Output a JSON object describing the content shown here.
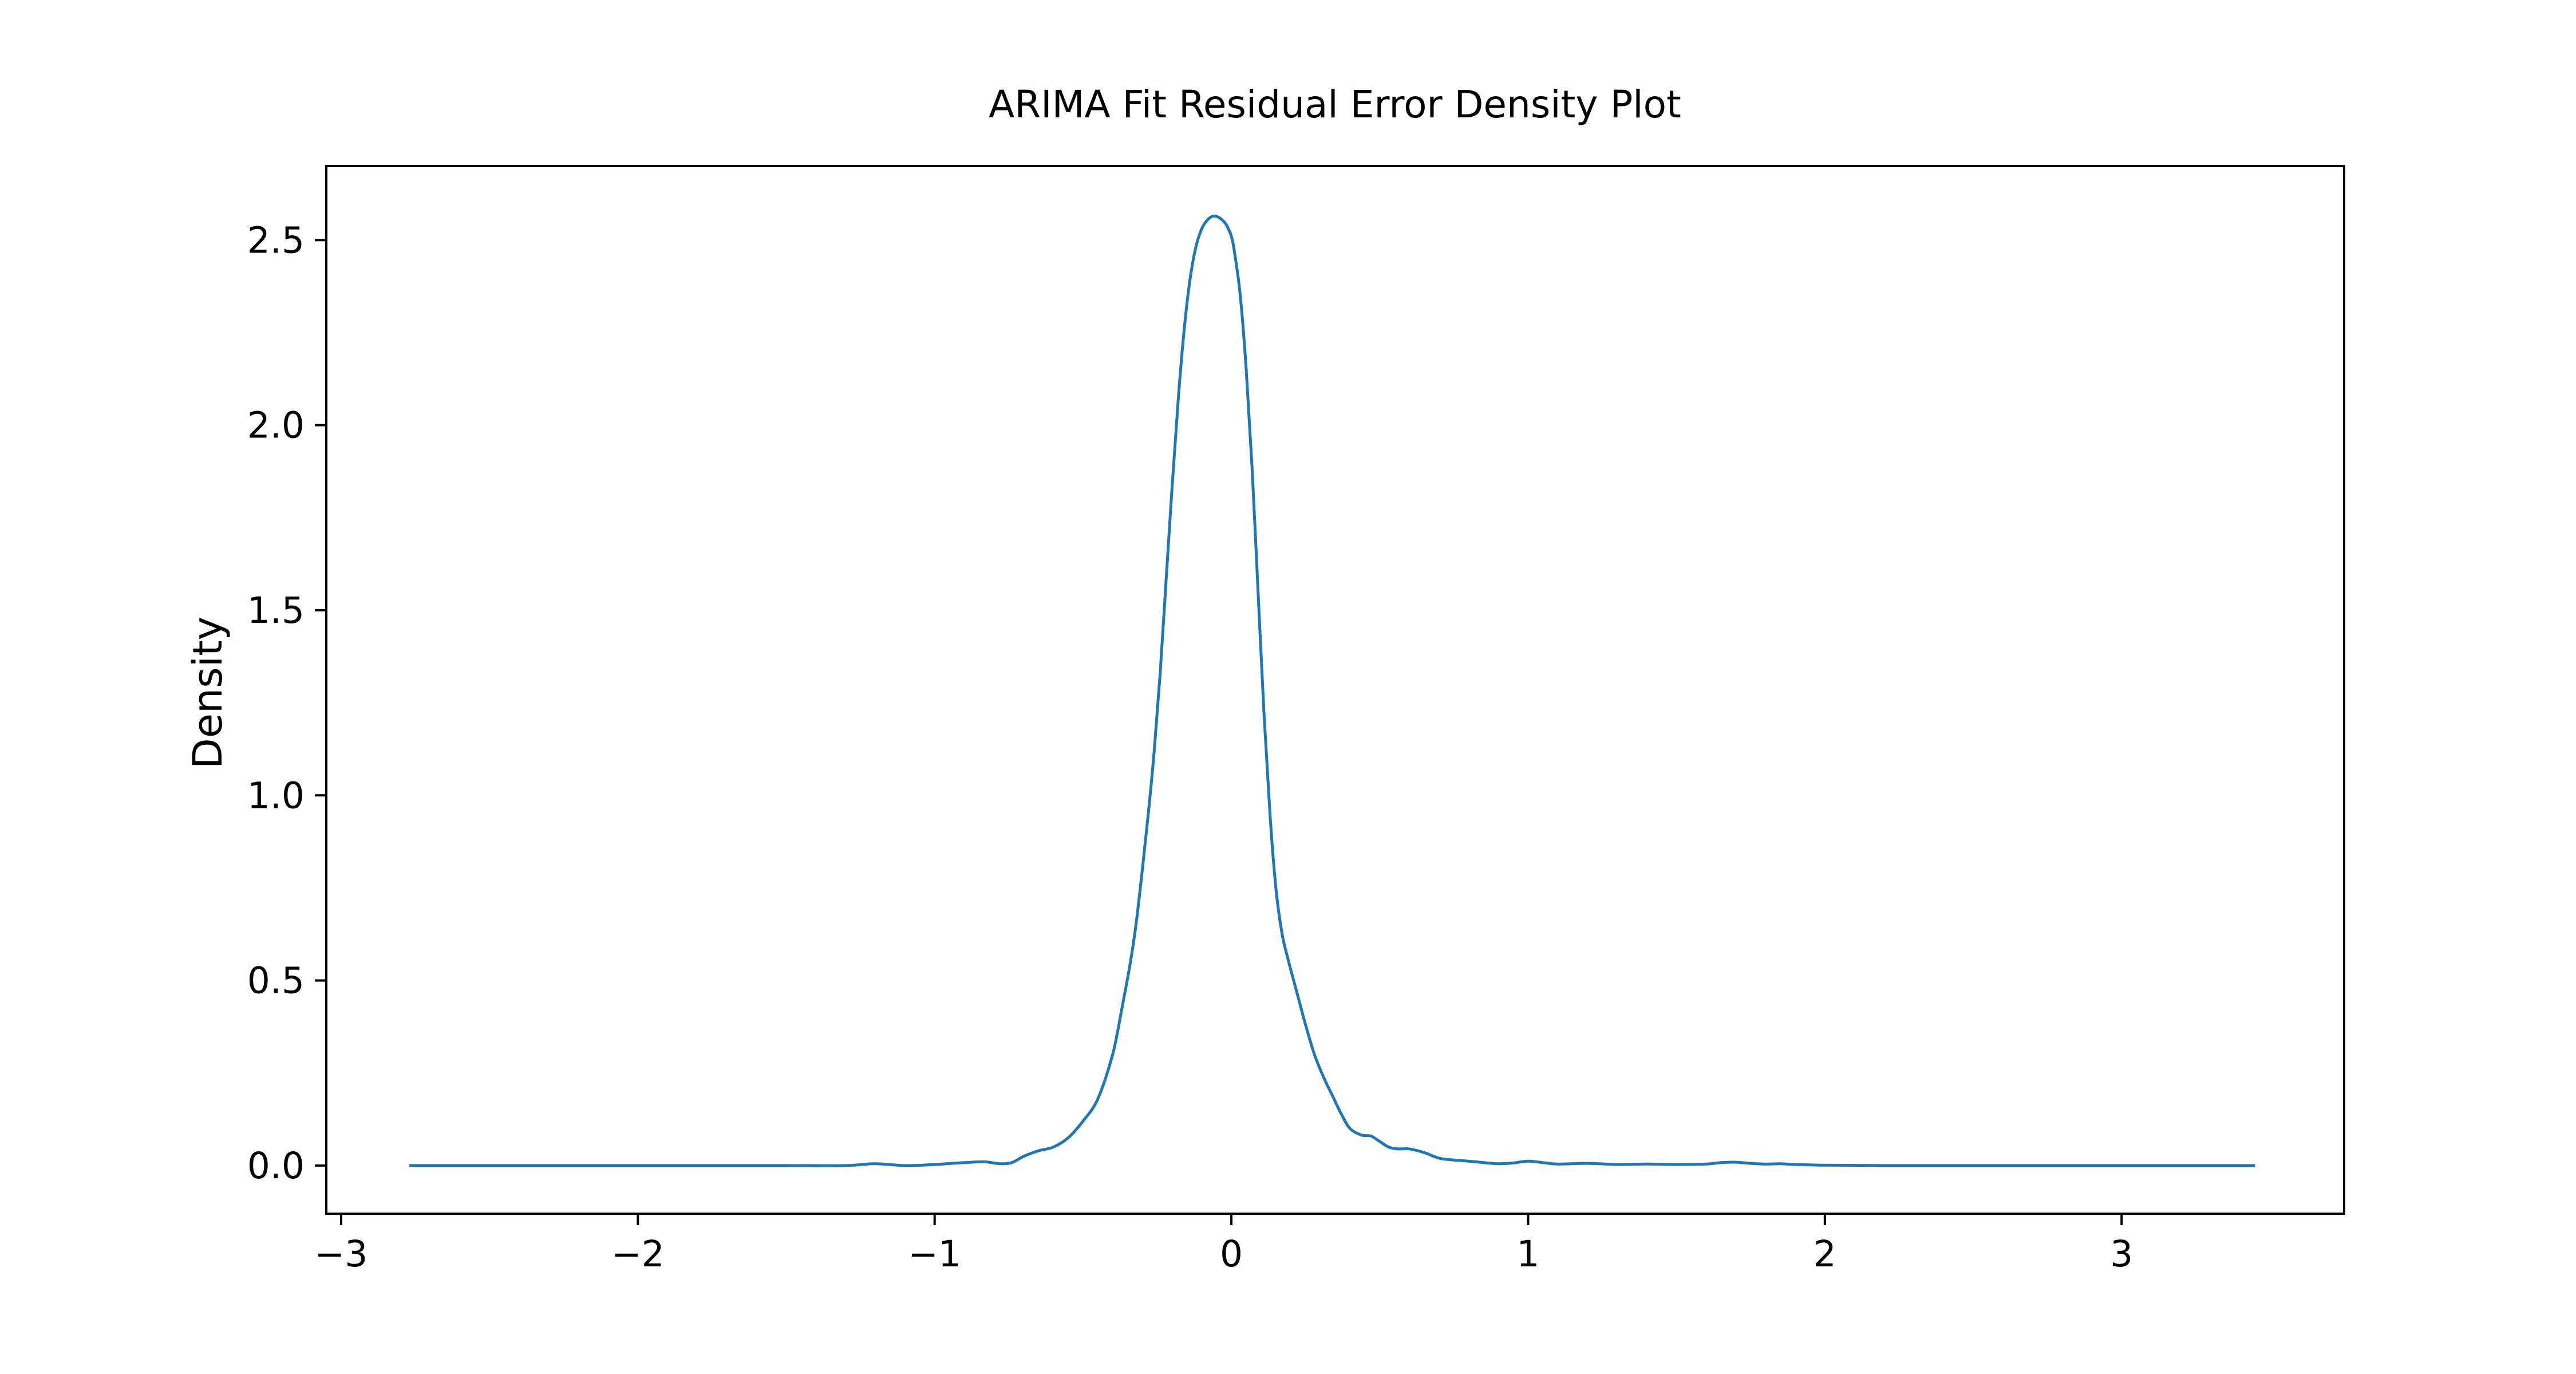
{
  "chart_data": {
    "type": "line",
    "title": "ARIMA Fit Residual Error Density Plot",
    "xlabel": "",
    "ylabel": "Density",
    "xlim": [
      -3.05,
      3.75
    ],
    "ylim": [
      -0.13,
      2.7
    ],
    "x_ticks": [
      -3,
      -2,
      -1,
      0,
      1,
      2,
      3
    ],
    "x_tick_labels": [
      "−3",
      "−2",
      "−1",
      "0",
      "1",
      "2",
      "3"
    ],
    "y_ticks": [
      0.0,
      0.5,
      1.0,
      1.5,
      2.0,
      2.5
    ],
    "y_tick_labels": [
      "0.0",
      "0.5",
      "1.0",
      "1.5",
      "2.0",
      "2.5"
    ],
    "grid": false,
    "series": [
      {
        "color": "#1f77b4",
        "x": [
          -2.77,
          -2.5,
          -2.0,
          -1.5,
          -1.3,
          -1.2,
          -1.1,
          -1.0,
          -0.9,
          -0.83,
          -0.78,
          -0.74,
          -0.7,
          -0.65,
          -0.6,
          -0.55,
          -0.5,
          -0.45,
          -0.4,
          -0.37,
          -0.34,
          -0.32,
          -0.3,
          -0.28,
          -0.26,
          -0.24,
          -0.22,
          -0.2,
          -0.18,
          -0.16,
          -0.14,
          -0.12,
          -0.1,
          -0.08,
          -0.06,
          -0.04,
          -0.02,
          -0.01,
          0.0,
          0.01,
          0.03,
          0.05,
          0.07,
          0.09,
          0.11,
          0.13,
          0.15,
          0.17,
          0.19,
          0.21,
          0.23,
          0.25,
          0.28,
          0.31,
          0.34,
          0.37,
          0.4,
          0.44,
          0.47,
          0.5,
          0.53,
          0.56,
          0.6,
          0.65,
          0.7,
          0.75,
          0.8,
          0.85,
          0.9,
          0.95,
          1.0,
          1.05,
          1.1,
          1.2,
          1.3,
          1.4,
          1.5,
          1.6,
          1.65,
          1.7,
          1.75,
          1.8,
          1.85,
          1.9,
          2.0,
          2.2,
          2.5,
          3.0,
          3.45
        ],
        "y": [
          0.0,
          0.0,
          0.0,
          0.0,
          0.0,
          0.005,
          0.0,
          0.003,
          0.008,
          0.01,
          0.005,
          0.008,
          0.025,
          0.04,
          0.05,
          0.075,
          0.12,
          0.18,
          0.3,
          0.42,
          0.55,
          0.66,
          0.8,
          0.95,
          1.12,
          1.33,
          1.58,
          1.83,
          2.06,
          2.25,
          2.39,
          2.48,
          2.53,
          2.555,
          2.565,
          2.56,
          2.545,
          2.53,
          2.51,
          2.47,
          2.35,
          2.15,
          1.88,
          1.55,
          1.22,
          0.95,
          0.75,
          0.63,
          0.56,
          0.5,
          0.44,
          0.38,
          0.3,
          0.24,
          0.19,
          0.14,
          0.1,
          0.082,
          0.08,
          0.065,
          0.05,
          0.045,
          0.045,
          0.035,
          0.02,
          0.015,
          0.012,
          0.008,
          0.005,
          0.007,
          0.012,
          0.008,
          0.004,
          0.006,
          0.003,
          0.004,
          0.003,
          0.004,
          0.008,
          0.009,
          0.006,
          0.004,
          0.005,
          0.003,
          0.001,
          0.0,
          0.0,
          0.0,
          0.0
        ]
      }
    ]
  }
}
